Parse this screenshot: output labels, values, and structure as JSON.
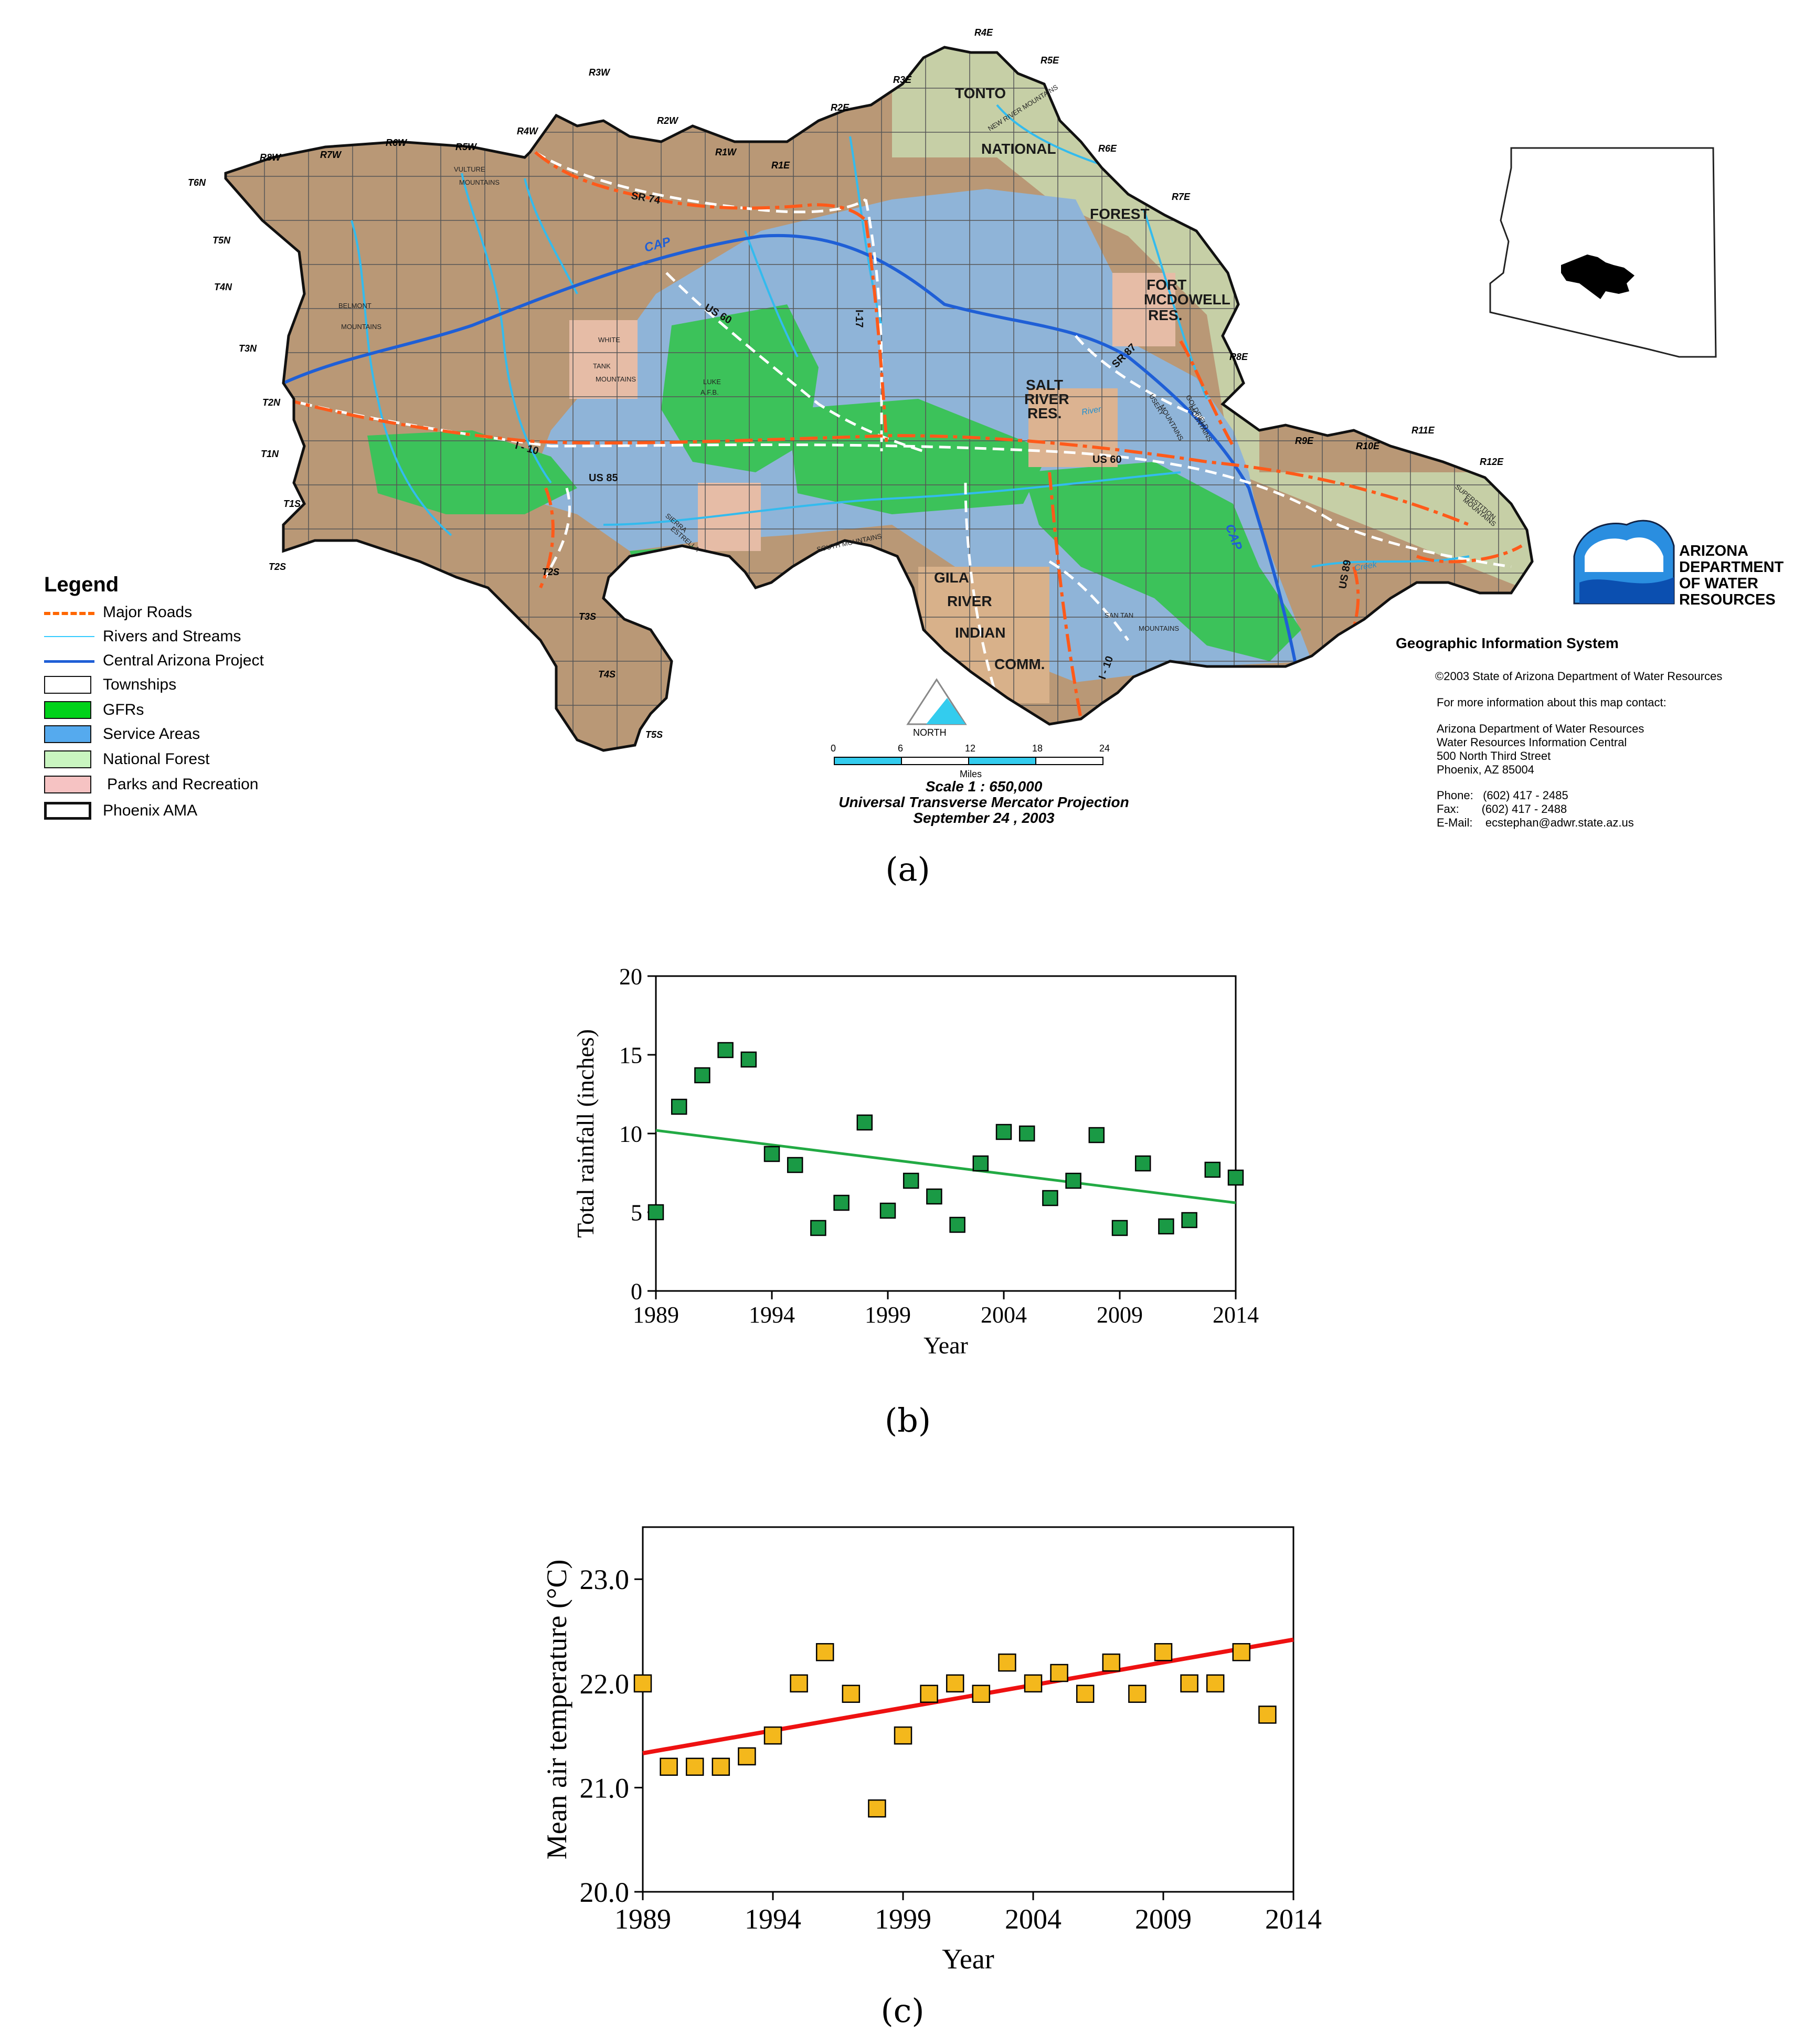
{
  "panels": [
    {
      "label": "(a)"
    },
    {
      "label": "(b)"
    },
    {
      "label": "(c)"
    }
  ],
  "map": {
    "range_labels": [
      "R8W",
      "R7W",
      "R6W",
      "R5W",
      "R4W",
      "R3W",
      "R2W",
      "R1W",
      "R1E",
      "R2E",
      "R3E",
      "R4E",
      "R5E",
      "R6E",
      "R7E",
      "R8E",
      "R9E",
      "R10E",
      "R11E",
      "R12E"
    ],
    "township_labels": [
      "T6N",
      "T5N",
      "T4N",
      "T3N",
      "T2N",
      "T1N",
      "T1S",
      "T2S",
      "T2S",
      "T3S",
      "T4S",
      "T5S"
    ],
    "place_labels": [
      "TONTO",
      "NATIONAL",
      "FOREST",
      "FORT",
      "MCDOWELL",
      "RES.",
      "SALT",
      "RIVER",
      "RES.",
      "GILA",
      "RIVER",
      "INDIAN",
      "COMM.",
      "WHITE",
      "TANK",
      "MOUNTAINS",
      "LUKE",
      "A.F.B.",
      "BELMONT",
      "MOUNTAINS",
      "VULTURE",
      "MOUNTAINS",
      "NEW RIVER MOUNTAINS",
      "SOUTH MOUNTAINS",
      "SAN TAN",
      "MOUNTAINS",
      "SUPERSTITION",
      "MOUNTAINS",
      "GOLDFIELD",
      "MOUNTAINS",
      "USERY",
      "MOUNTAINS",
      "SIERRA",
      "ESTRELLA"
    ],
    "road_labels": [
      "SR 74",
      "US 60",
      "I-17",
      "SR 87",
      "I - 10",
      "US 85",
      "US 60",
      "I - 10",
      "US 89",
      "CAP",
      "CAP",
      "River",
      "Creek"
    ],
    "legend": {
      "title": "Legend",
      "items": [
        {
          "label": "Major Roads",
          "color": "#ff6600"
        },
        {
          "label": "Rivers and Streams",
          "color": "#33ccff"
        },
        {
          "label": "Central Arizona Project",
          "color": "#1f5fd6"
        },
        {
          "label": "Townships",
          "color": "#ffffff"
        },
        {
          "label": "GFRs",
          "color": "#00d21a"
        },
        {
          "label": "Service Areas",
          "color": "#55aaee"
        },
        {
          "label": "National Forest",
          "color": "#c9f5c0"
        },
        {
          "label": "Parks and Recreation",
          "color": "#f6c3c3"
        },
        {
          "label": "Phoenix AMA",
          "color": "#ffffff"
        }
      ]
    },
    "north": "NORTH",
    "scale_bar": {
      "ticks": [
        "0",
        "6",
        "12",
        "18",
        "24"
      ],
      "unit": "Miles"
    },
    "scale_text": [
      "Scale 1 : 650,000",
      "Universal Transverse Mercator Projection",
      "September 24 , 2003"
    ],
    "adwr_logo": [
      "ARIZONA",
      "DEPARTMENT",
      "OF WATER",
      "RESOURCES"
    ],
    "gis_title": "Geographic Information System",
    "copyright": "2003 State of Arizona Department of Water Resources",
    "contact_intro": "For more information about this map contact:",
    "contact_address": [
      "Arizona Department of Water Resources",
      "Water Resources Information Central",
      "500 North Third Street",
      "Phoenix, AZ 85004"
    ],
    "contact_phone": [
      "Phone:   (602) 417 - 2485",
      "Fax:       (602) 417 - 2488",
      "E-Mail:    ecstephan@adwr.state.az.us"
    ],
    "colors": {
      "terrain": "#b99876",
      "service": "#8fb4d8",
      "gfr": "#3cc25a",
      "forest": "#c6cfa6",
      "park": "#e6bca6",
      "road": "#ff5a1a",
      "cap": "#1f5fd6",
      "river": "#33bbee",
      "highway": "#ffffff"
    }
  },
  "chart_data": [
    {
      "type": "scatter",
      "title": "",
      "xlabel": "Year",
      "ylabel": "Total rainfall (inches)",
      "xlim": [
        1989,
        2014
      ],
      "ylim": [
        0,
        20
      ],
      "xticks": [
        1989,
        1994,
        1999,
        2004,
        2009,
        2014
      ],
      "yticks": [
        0,
        5,
        10,
        15,
        20
      ],
      "grid": false,
      "marker_color": "#1a9a45",
      "trend_color": "#22aa44",
      "x": [
        1989,
        1990,
        1991,
        1992,
        1993,
        1994,
        1995,
        1996,
        1997,
        1998,
        1999,
        2000,
        2001,
        2002,
        2003,
        2004,
        2005,
        2006,
        2007,
        2008,
        2009,
        2010,
        2011,
        2012,
        2013,
        2014
      ],
      "y": [
        5.0,
        11.7,
        13.7,
        15.3,
        14.7,
        8.7,
        8.0,
        4.0,
        5.6,
        10.7,
        5.1,
        7.0,
        6.0,
        4.2,
        8.1,
        10.1,
        10.0,
        5.9,
        7.0,
        9.9,
        4.0,
        8.1,
        4.1,
        4.5,
        7.7,
        7.2
      ],
      "trend": {
        "x": [
          1989,
          2014
        ],
        "y": [
          10.2,
          5.6
        ]
      }
    },
    {
      "type": "scatter",
      "title": "",
      "xlabel": "Year",
      "ylabel": "Mean air temperature (°C)",
      "xlim": [
        1989,
        2014
      ],
      "ylim": [
        20.0,
        23.5
      ],
      "xticks": [
        1989,
        1994,
        1999,
        2004,
        2009,
        2014
      ],
      "yticks": [
        "20.0",
        "21.0",
        "22.0",
        "23.0"
      ],
      "grid": false,
      "marker_color": "#f4b81c",
      "trend_color": "#ee1111",
      "x": [
        1989,
        1990,
        1991,
        1992,
        1993,
        1994,
        1995,
        1996,
        1997,
        1998,
        1999,
        2000,
        2001,
        2002,
        2003,
        2004,
        2005,
        2006,
        2007,
        2008,
        2009,
        2010,
        2011,
        2012,
        2013
      ],
      "y": [
        22.0,
        21.2,
        21.2,
        21.2,
        21.3,
        21.5,
        22.0,
        22.3,
        21.9,
        20.8,
        21.5,
        21.9,
        22.0,
        21.9,
        22.2,
        22.0,
        22.1,
        21.9,
        22.2,
        21.9,
        22.3,
        22.0,
        22.0,
        22.3,
        21.7
      ],
      "trend": {
        "x": [
          1989,
          2014
        ],
        "y": [
          21.33,
          22.42
        ]
      }
    }
  ]
}
